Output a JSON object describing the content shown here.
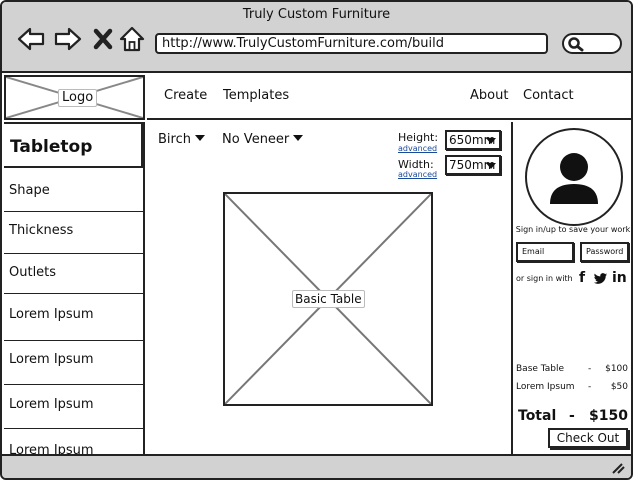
{
  "window": {
    "title": "Truly Custom Furniture"
  },
  "browser": {
    "url": "http://www.TrulyCustomFurniture.com/build",
    "icons": {
      "back": "back-arrow-icon",
      "forward": "forward-arrow-icon",
      "stop": "close-icon",
      "home": "home-icon",
      "search": "search-icon"
    }
  },
  "header": {
    "logo_label": "Logo",
    "nav": {
      "create": "Create",
      "templates": "Templates",
      "about": "About",
      "contact": "Contact"
    }
  },
  "sidebar": {
    "heading": "Tabletop",
    "items": [
      {
        "label": "Shape"
      },
      {
        "label": "Thickness"
      },
      {
        "label": "Outlets"
      },
      {
        "label": "Lorem Ipsum"
      },
      {
        "label": "Lorem Ipsum"
      },
      {
        "label": "Lorem Ipsum"
      },
      {
        "label": "Lorem Ipsum"
      }
    ]
  },
  "main": {
    "wood": "Birch",
    "veneer": "No Veneer",
    "height": {
      "label": "Height:",
      "link": "advanced",
      "value": "650mm"
    },
    "width": {
      "label": "Width:",
      "link": "advanced",
      "value": "750mm"
    },
    "preview_label": "Basic Table"
  },
  "account": {
    "prompt": "Sign in/up to save your work",
    "email_placeholder": "Email",
    "password_placeholder": "Password",
    "social_text": "or sign in with",
    "social": {
      "facebook": "f",
      "twitter": "twitter-bird-icon",
      "linkedin": "in"
    }
  },
  "pricing": {
    "lines": [
      {
        "name": "Base Table",
        "sep": "-",
        "price": "$100"
      },
      {
        "name": "Lorem Ipsum",
        "sep": "-",
        "price": "$50"
      }
    ],
    "total": {
      "name": "Total",
      "sep": "-",
      "price": "$150"
    },
    "checkout_label": "Check Out"
  },
  "colors": {
    "chrome": "#d2d2d2",
    "border": "#222222",
    "link": "#1a4a9a"
  }
}
